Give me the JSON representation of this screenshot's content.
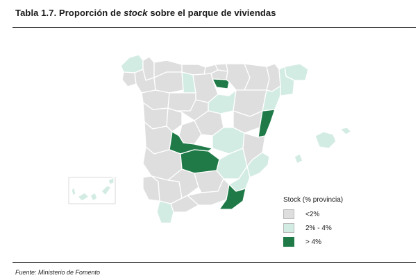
{
  "title": {
    "prefix": "Tabla 1.7.  Proporción de ",
    "emphasis": "stock",
    "suffix": " sobre el parque de viviendas"
  },
  "footer": "Fuente:  Ministerio de Fomento",
  "colors": {
    "low": "#dedede",
    "mid": "#d3ece3",
    "high": "#1f7a48",
    "border": "#ffffff",
    "rule": "#222222"
  },
  "legend": {
    "title": "Stock (% provincia)",
    "items": [
      {
        "label": "<2%",
        "color": "#dedede"
      },
      {
        "label": "2% - 4%",
        "color": "#d3ece3"
      },
      {
        "label": "> 4%",
        "color": "#1f7a48"
      }
    ]
  }
}
